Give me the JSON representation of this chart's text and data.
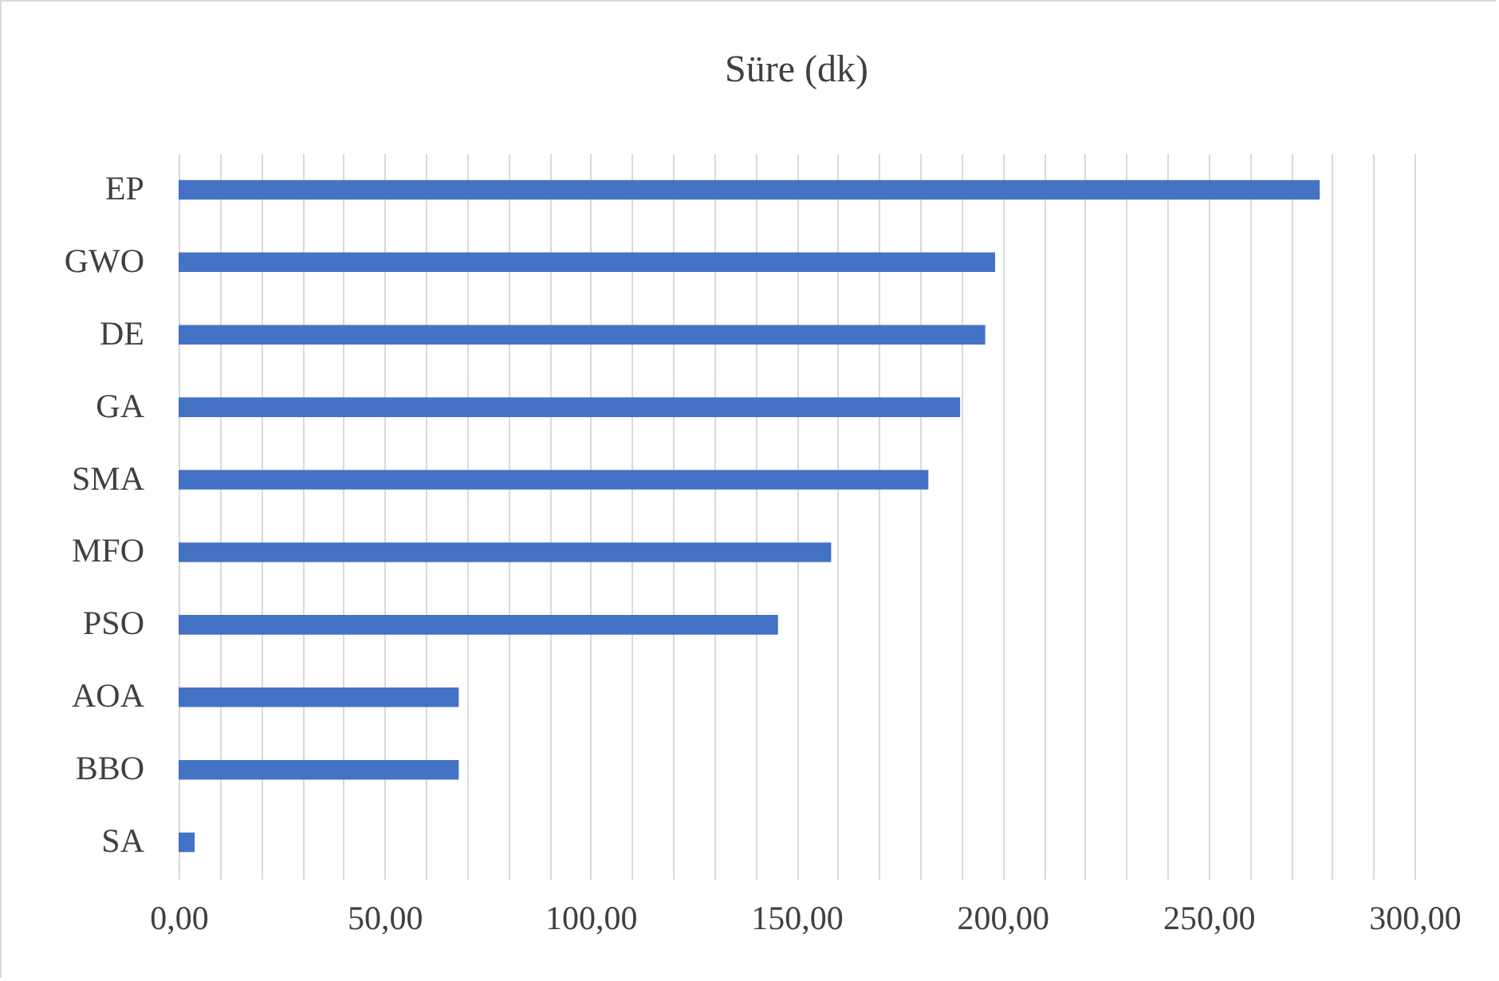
{
  "chart_data": {
    "type": "bar",
    "orientation": "horizontal",
    "title": "Süre (dk)",
    "categories": [
      "EP",
      "GWO",
      "DE",
      "GA",
      "SMA",
      "MFO",
      "PSO",
      "AOA",
      "BBO",
      "SA"
    ],
    "values": [
      277,
      198.2,
      195.8,
      189.7,
      182,
      158.4,
      145.5,
      68,
      68,
      3.9
    ],
    "color": "#4472c4",
    "xlim": [
      0,
      300
    ],
    "xticks": [
      {
        "value": 0,
        "label": "0,00"
      },
      {
        "value": 10,
        "label": null
      },
      {
        "value": 20,
        "label": null
      },
      {
        "value": 30,
        "label": null
      },
      {
        "value": 40,
        "label": null
      },
      {
        "value": 50,
        "label": "50,00"
      },
      {
        "value": 60,
        "label": null
      },
      {
        "value": 70,
        "label": null
      },
      {
        "value": 80,
        "label": null
      },
      {
        "value": 90,
        "label": null
      },
      {
        "value": 100,
        "label": "100,00"
      },
      {
        "value": 110,
        "label": null
      },
      {
        "value": 120,
        "label": null
      },
      {
        "value": 130,
        "label": null
      },
      {
        "value": 140,
        "label": null
      },
      {
        "value": 150,
        "label": "150,00"
      },
      {
        "value": 160,
        "label": null
      },
      {
        "value": 170,
        "label": null
      },
      {
        "value": 180,
        "label": null
      },
      {
        "value": 190,
        "label": null
      },
      {
        "value": 200,
        "label": "200,00"
      },
      {
        "value": 210,
        "label": null
      },
      {
        "value": 220,
        "label": null
      },
      {
        "value": 230,
        "label": null
      },
      {
        "value": 240,
        "label": null
      },
      {
        "value": 250,
        "label": "250,00"
      },
      {
        "value": 260,
        "label": null
      },
      {
        "value": 270,
        "label": null
      },
      {
        "value": 280,
        "label": null
      },
      {
        "value": 290,
        "label": null
      },
      {
        "value": 300,
        "label": "300,00"
      }
    ],
    "grid": true
  }
}
